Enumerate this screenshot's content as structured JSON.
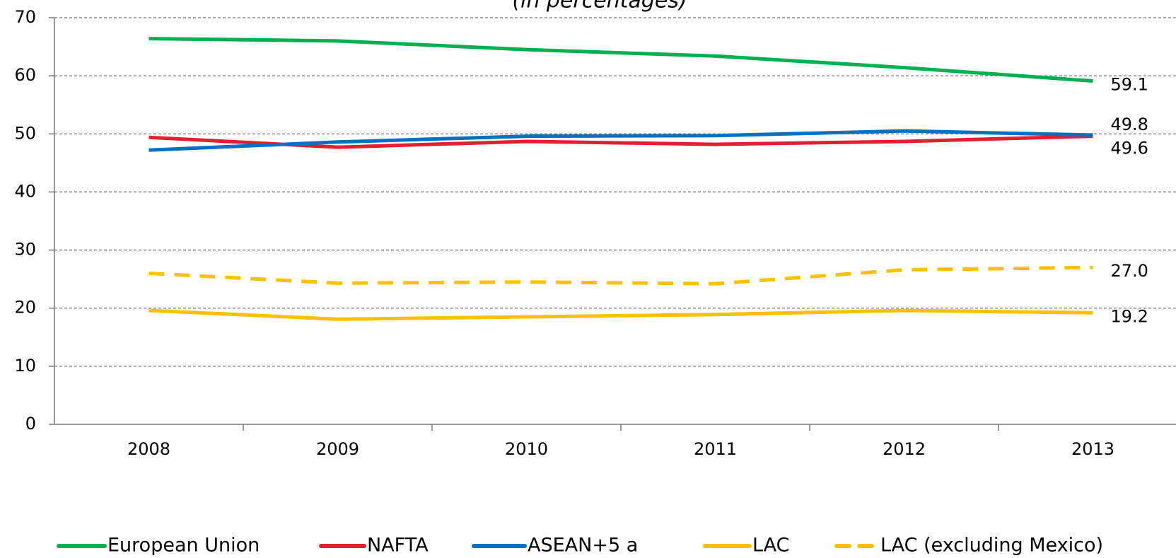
{
  "chart_data": {
    "type": "line",
    "subtitle": "(in percentages)",
    "categories": [
      "2008",
      "2009",
      "2010",
      "2011",
      "2012",
      "2013"
    ],
    "series": [
      {
        "name": "European Union",
        "color": "#00b050",
        "style": "solid",
        "values": [
          66.4,
          66.0,
          64.5,
          63.4,
          61.4,
          59.1
        ],
        "value_labels": [
          null,
          null,
          null,
          null,
          null,
          "59.1"
        ]
      },
      {
        "name": "NAFTA",
        "color": "#e0202e",
        "style": "solid",
        "values": [
          49.4,
          47.7,
          48.7,
          48.2,
          48.7,
          49.6
        ],
        "value_labels": [
          null,
          null,
          null,
          null,
          null,
          "49.6"
        ]
      },
      {
        "name": "ASEAN+5 a",
        "color": "#0070c0",
        "style": "solid",
        "values": [
          47.2,
          48.6,
          49.6,
          49.7,
          50.5,
          49.8
        ],
        "value_labels": [
          null,
          null,
          null,
          null,
          null,
          "49.8"
        ]
      },
      {
        "name": "LAC",
        "color": "#ffc000",
        "style": "solid",
        "values": [
          19.6,
          18.1,
          18.5,
          18.9,
          19.6,
          19.2
        ],
        "value_labels": [
          null,
          null,
          null,
          null,
          null,
          "19.2"
        ]
      },
      {
        "name": "LAC (excluding Mexico)",
        "color": "#ffc000",
        "style": "dashed",
        "values": [
          26.0,
          24.3,
          24.5,
          24.2,
          26.6,
          27.0
        ],
        "value_labels": [
          null,
          null,
          null,
          null,
          null,
          "27.0"
        ]
      }
    ],
    "ylim": [
      0,
      70
    ],
    "yticks": [
      0,
      10,
      20,
      30,
      40,
      50,
      60,
      70
    ],
    "grid": true,
    "legend": "bottom"
  }
}
